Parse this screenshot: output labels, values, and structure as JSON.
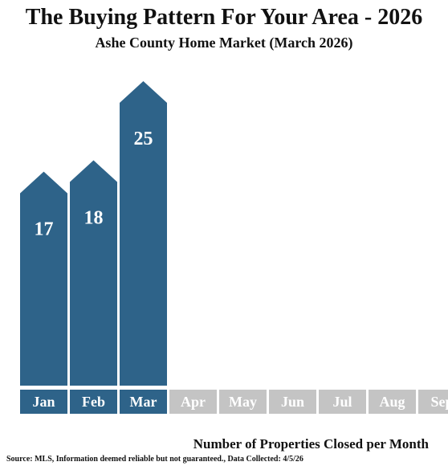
{
  "chart_data": {
    "type": "bar",
    "title": "The Buying Pattern For Your Area - 2026",
    "subtitle": "Ashe County Home Market (March 2026)",
    "categories": [
      "Jan",
      "Feb",
      "Mar",
      "Apr",
      "May",
      "Jun",
      "Jul",
      "Aug",
      "Sep"
    ],
    "values": [
      17,
      18,
      25,
      null,
      null,
      null,
      null,
      null,
      null
    ],
    "xlabel": "Number of Properties Closed per Month",
    "ylabel": "",
    "ylim": [
      0,
      27
    ],
    "grid": false,
    "legend": "none",
    "source": "Source: MLS, Information deemed reliable but not guaranteed., Data Collected: 4/5/26",
    "colors": {
      "bar": "#2e6389",
      "active_label_bg": "#2e6389",
      "inactive_label_bg": "#c4c4c4",
      "label_text": "#ffffff"
    }
  }
}
